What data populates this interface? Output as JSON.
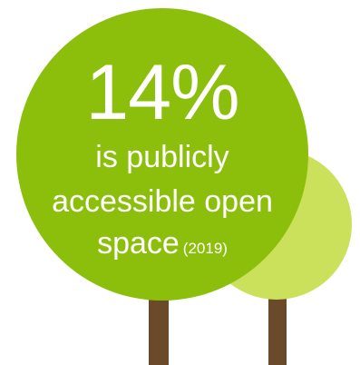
{
  "stat": {
    "value": "14%",
    "line1": "is publicly",
    "line2": "accessible open",
    "line3": "space",
    "year": "(2019)"
  },
  "colors": {
    "big_canopy": "#8cbf0b",
    "small_canopy": "#cbe05b",
    "trunk": "#6b4a2b",
    "text": "#ffffff",
    "background": "#ffffff"
  }
}
